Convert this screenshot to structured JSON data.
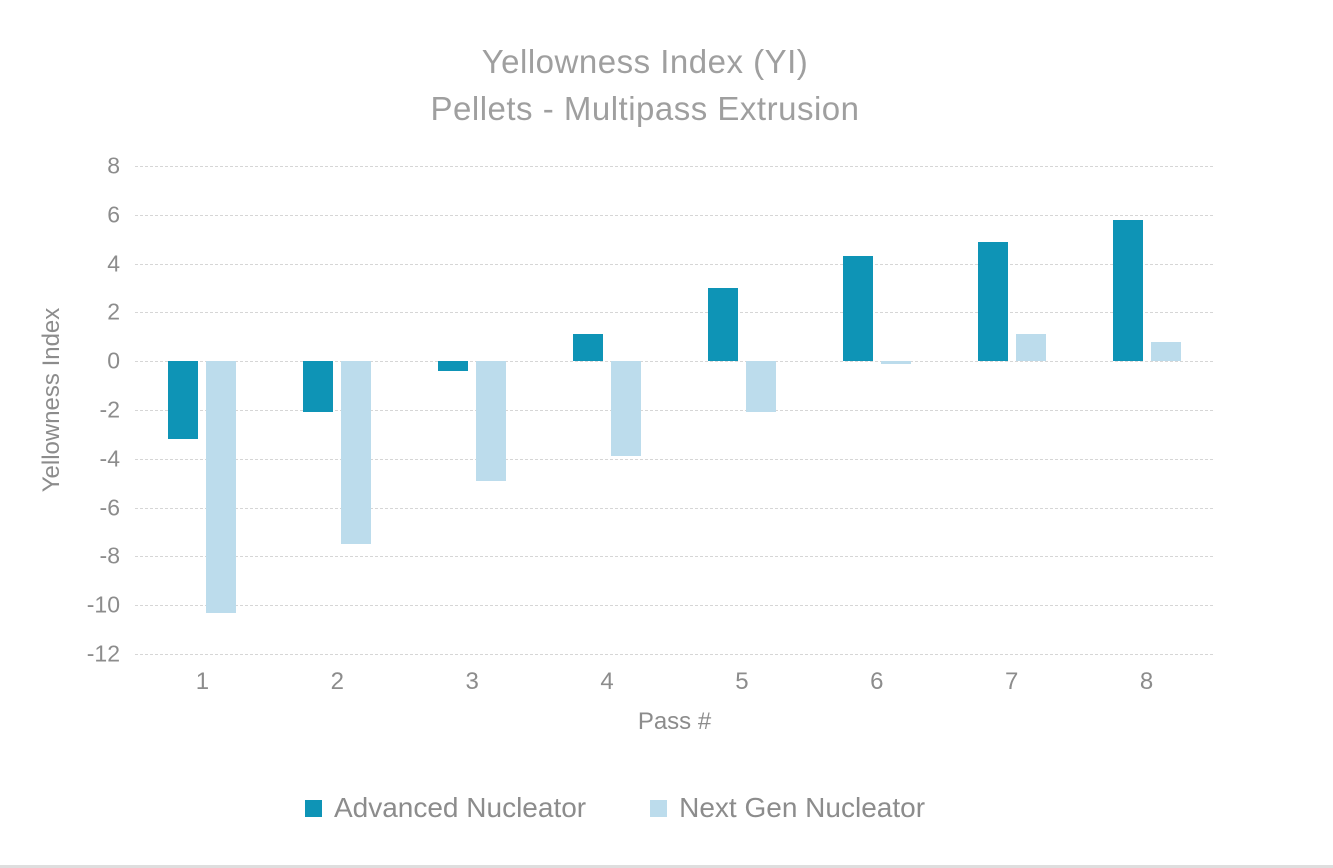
{
  "title": {
    "line1": "Yellowness Index (YI)",
    "line2": "Pellets - Multipass Extrusion"
  },
  "chart_data": {
    "type": "bar",
    "title": "Yellowness Index (YI) Pellets - Multipass Extrusion",
    "categories": [
      "1",
      "2",
      "3",
      "4",
      "5",
      "6",
      "7",
      "8"
    ],
    "series": [
      {
        "name": "Advanced Nucleator",
        "color": "#0e94b6",
        "values": [
          -3.2,
          -2.1,
          -0.4,
          1.1,
          3.0,
          4.3,
          4.9,
          5.8
        ]
      },
      {
        "name": "Next Gen Nucleator",
        "color": "#bcdcec",
        "values": [
          -10.3,
          -7.5,
          -4.9,
          -3.9,
          -2.1,
          -0.1,
          1.1,
          0.8
        ]
      }
    ],
    "xlabel": "Pass #",
    "ylabel": "Yellowness Index",
    "ylim": [
      -12,
      8
    ],
    "yticks": [
      8,
      6,
      4,
      2,
      0,
      -2,
      -4,
      -6,
      -8,
      -10,
      -12
    ],
    "grid": true,
    "legend_position": "bottom"
  },
  "colors": {
    "advanced_nucleator": "#0e94b6",
    "next_gen_nucleator": "#bcdcec",
    "title_text": "#9f9f9f",
    "axis_text": "#8c8c8c",
    "gridline": "#d6d6d6"
  }
}
